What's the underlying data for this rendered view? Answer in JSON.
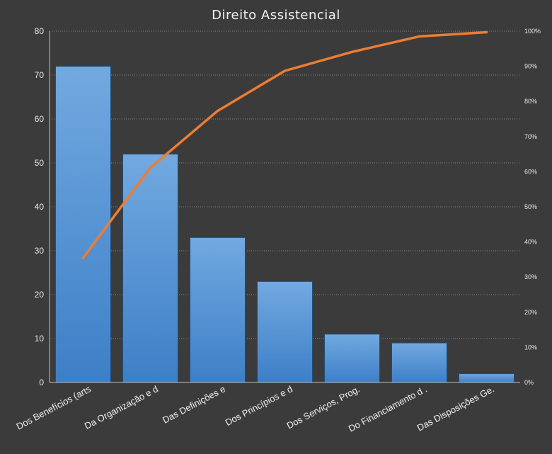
{
  "chart_data": {
    "type": "bar",
    "title": "Direito Assistencial",
    "categories": [
      "Dos Benefícios (arts",
      "Da Organização e d",
      "Das Definições e",
      "Dos Princípios e d",
      "Dos Serviços, Prog.",
      "Do Financiamento d .",
      "Das Disposições Ge."
    ],
    "series": [
      {
        "values": [
          72,
          52,
          33,
          23,
          11,
          9,
          2
        ]
      },
      {
        "type": "line",
        "axis": "secondary",
        "values": [
          35.5,
          61.1,
          77.3,
          88.7,
          94.1,
          98.5,
          99.7
        ]
      }
    ],
    "ylim": [
      0,
      80
    ],
    "yticks": [
      0,
      10,
      20,
      30,
      40,
      50,
      60,
      70,
      80
    ],
    "y2lim": [
      0,
      100
    ],
    "y2ticks": [
      "0%",
      "10%",
      "20%",
      "30%",
      "40%",
      "50%",
      "60%",
      "70%",
      "80%",
      "90%",
      "100%"
    ],
    "grid": true,
    "colors": {
      "bar_top": "#72a9e0",
      "bar_bottom": "#3d7fc7",
      "line": "#ed7d31",
      "background": "#3b3b3b"
    }
  }
}
